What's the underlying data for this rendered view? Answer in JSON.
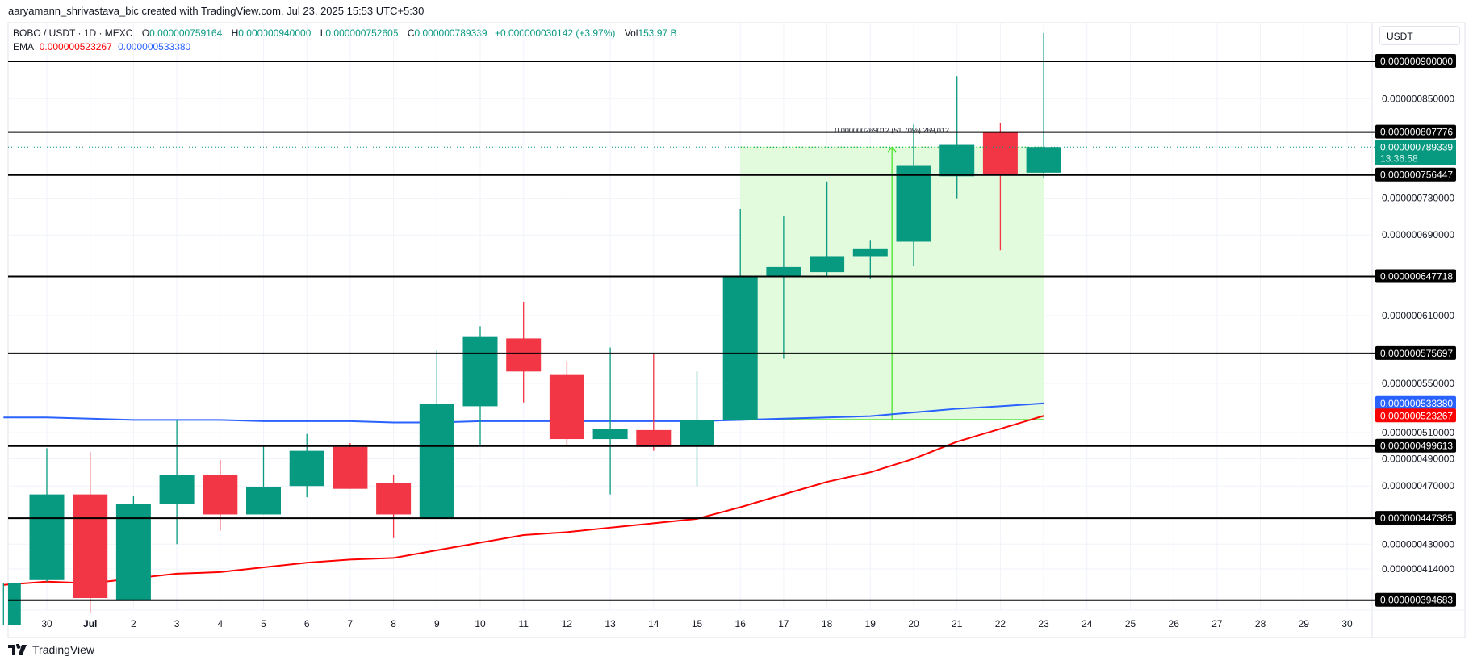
{
  "header": {
    "credit": "aaryamann_shrivastava_bic created with TradingView.com, Jul 23, 2025 15:53 UTC+5:30"
  },
  "legend": {
    "symbol": "BOBO / USDT · 1D · MEXC",
    "o_label": "O",
    "o": "0.000000759164",
    "h_label": "H",
    "h": "0.000000940000",
    "l_label": "L",
    "l": "0.000000752605",
    "c_label": "C",
    "c": "0.000000789339",
    "change": "+0.000000030142 (+3.97%)",
    "vol_label": "Vol",
    "vol": "153.97 B"
  },
  "ema_legend": {
    "label": "EMA",
    "value_red": "0.000000523267",
    "value_blue": "0.000000533380"
  },
  "colors": {
    "up": "#089981",
    "down": "#f23645",
    "ema_red": "#ff0000",
    "ema_blue": "#2962ff",
    "measure_fill": "#e2fbdc",
    "measure_line": "#3ee01f"
  },
  "price_axis": {
    "currency": "USDT",
    "ticks": [
      {
        "price": 8.5e-07,
        "label": "0.000000850000"
      },
      {
        "price": 7.3e-07,
        "label": "0.000000730000"
      },
      {
        "price": 6.9e-07,
        "label": "0.000000690000"
      },
      {
        "price": 6.1e-07,
        "label": "0.000000610000"
      },
      {
        "price": 5.5e-07,
        "label": "0.000000550000"
      },
      {
        "price": 5.1e-07,
        "label": "0.000000510000"
      },
      {
        "price": 4.9e-07,
        "label": "0.000000490000"
      },
      {
        "price": 4.7e-07,
        "label": "0.000000470000"
      },
      {
        "price": 4.3e-07,
        "label": "0.000000430000"
      },
      {
        "price": 4.14e-07,
        "label": "0.000000414000"
      }
    ],
    "levels": [
      {
        "price": 9e-07,
        "label": "0.000000900000"
      },
      {
        "price": 8.07776e-07,
        "label": "0.000000807776"
      },
      {
        "price": 7.56447e-07,
        "label": "0.000000756447"
      },
      {
        "price": 6.47718e-07,
        "label": "0.000000647718"
      },
      {
        "price": 5.75697e-07,
        "label": "0.000000575697"
      },
      {
        "price": 4.99613e-07,
        "label": "0.000000499613"
      },
      {
        "price": 4.47385e-07,
        "label": "0.000000447385"
      },
      {
        "price": 3.94683e-07,
        "label": "0.000000394683"
      }
    ],
    "current": {
      "price": 7.89339e-07,
      "label": "0.000000789339",
      "countdown": "13:36:58"
    },
    "ema_tags": [
      {
        "price": 5.3338e-07,
        "label": "0.000000533380",
        "color": "#2962ff"
      },
      {
        "price": 5.23267e-07,
        "label": "0.000000523267",
        "color": "#ff0000"
      }
    ]
  },
  "measure": {
    "label": "0.000000269012 (51.70%) 269,012",
    "from_date": "2025-07-16",
    "to_date": "2025-07-23",
    "low": 5.20327e-07,
    "high": 7.89339e-07
  },
  "time_axis": {
    "labels": [
      "30",
      "Jul",
      "2",
      "3",
      "4",
      "5",
      "6",
      "7",
      "8",
      "9",
      "10",
      "11",
      "12",
      "13",
      "14",
      "15",
      "16",
      "17",
      "18",
      "19",
      "20",
      "21",
      "22",
      "23",
      "24",
      "25",
      "26",
      "27",
      "28",
      "29",
      "30"
    ]
  },
  "chart_data": {
    "type": "candlestick",
    "scale": "log",
    "ylim": [
      3.8e-07,
      9.6e-07
    ],
    "grid": true,
    "candles": [
      {
        "date": "2025-06-29",
        "o": 3.8e-07,
        "h": 4.05e-07,
        "l": 3.8e-07,
        "c": 4.05e-07
      },
      {
        "date": "2025-06-30",
        "o": 4.07e-07,
        "h": 4.98e-07,
        "l": 4.06e-07,
        "c": 4.64e-07
      },
      {
        "date": "2025-07-01",
        "o": 4.64e-07,
        "h": 4.95e-07,
        "l": 3.87e-07,
        "c": 3.96e-07
      },
      {
        "date": "2025-07-02",
        "o": 3.95e-07,
        "h": 4.63e-07,
        "l": 3.95e-07,
        "c": 4.57e-07
      },
      {
        "date": "2025-07-03",
        "o": 4.57e-07,
        "h": 5.2e-07,
        "l": 4.3e-07,
        "c": 4.78e-07
      },
      {
        "date": "2025-07-04",
        "o": 4.78e-07,
        "h": 4.89e-07,
        "l": 4.39e-07,
        "c": 4.5e-07
      },
      {
        "date": "2025-07-05",
        "o": 4.5e-07,
        "h": 5e-07,
        "l": 4.5e-07,
        "c": 4.69e-07
      },
      {
        "date": "2025-07-06",
        "o": 4.7e-07,
        "h": 5.09e-07,
        "l": 4.62e-07,
        "c": 4.96e-07
      },
      {
        "date": "2025-07-07",
        "o": 4.99e-07,
        "h": 5.02e-07,
        "l": 4.68e-07,
        "c": 4.68e-07
      },
      {
        "date": "2025-07-08",
        "o": 4.72e-07,
        "h": 4.78e-07,
        "l": 4.34e-07,
        "c": 4.5e-07
      },
      {
        "date": "2025-07-09",
        "o": 4.47e-07,
        "h": 5.78e-07,
        "l": 4.47e-07,
        "c": 5.33e-07
      },
      {
        "date": "2025-07-10",
        "o": 5.31e-07,
        "h": 6e-07,
        "l": 5e-07,
        "c": 5.91e-07
      },
      {
        "date": "2025-07-11",
        "o": 5.89e-07,
        "h": 6.23e-07,
        "l": 5.34e-07,
        "c": 5.6e-07
      },
      {
        "date": "2025-07-12",
        "o": 5.57e-07,
        "h": 5.69e-07,
        "l": 5e-07,
        "c": 5.05e-07
      },
      {
        "date": "2025-07-13",
        "o": 5.05e-07,
        "h": 5.81e-07,
        "l": 4.64e-07,
        "c": 5.13e-07
      },
      {
        "date": "2025-07-14",
        "o": 5.12e-07,
        "h": 5.76e-07,
        "l": 4.96e-07,
        "c": 4.99e-07
      },
      {
        "date": "2025-07-15",
        "o": 5e-07,
        "h": 5.6e-07,
        "l": 4.7e-07,
        "c": 5.2e-07
      },
      {
        "date": "2025-07-16",
        "o": 5.2e-07,
        "h": 7.18e-07,
        "l": 5.2e-07,
        "c": 6.48e-07
      },
      {
        "date": "2025-07-17",
        "o": 6.47e-07,
        "h": 7.1e-07,
        "l": 5.71e-07,
        "c": 6.57e-07
      },
      {
        "date": "2025-07-18",
        "o": 6.52e-07,
        "h": 7.49e-07,
        "l": 6.47e-07,
        "c": 6.68e-07
      },
      {
        "date": "2025-07-19",
        "o": 6.68e-07,
        "h": 6.84e-07,
        "l": 6.45e-07,
        "c": 6.76e-07
      },
      {
        "date": "2025-07-20",
        "o": 6.83e-07,
        "h": 8.17e-07,
        "l": 6.58e-07,
        "c": 7.67e-07
      },
      {
        "date": "2025-07-21",
        "o": 7.55e-07,
        "h": 8.8e-07,
        "l": 7.3e-07,
        "c": 7.92e-07
      },
      {
        "date": "2025-07-22",
        "o": 8.08e-07,
        "h": 8.19e-07,
        "l": 6.74e-07,
        "c": 7.58e-07
      },
      {
        "date": "2025-07-23",
        "o": 7.59164e-07,
        "h": 9.4e-07,
        "l": 7.52605e-07,
        "c": 7.89339e-07
      }
    ],
    "series": [
      {
        "color": "#2962ff",
        "values": [
          5.22e-07,
          5.22e-07,
          5.21e-07,
          5.2e-07,
          5.2e-07,
          5.2e-07,
          5.19e-07,
          5.19e-07,
          5.19e-07,
          5.18e-07,
          5.18e-07,
          5.19e-07,
          5.19e-07,
          5.19e-07,
          5.19e-07,
          5.19e-07,
          5.19e-07,
          5.2e-07,
          5.21e-07,
          5.22e-07,
          5.23e-07,
          5.26e-07,
          5.29e-07,
          5.31e-07,
          5.3338e-07
        ]
      },
      {
        "color": "#ff0000",
        "values": [
          4.04e-07,
          4.06e-07,
          4.05e-07,
          4.08e-07,
          4.11e-07,
          4.12e-07,
          4.15e-07,
          4.18e-07,
          4.2e-07,
          4.21e-07,
          4.26e-07,
          4.31e-07,
          4.36e-07,
          4.38e-07,
          4.41e-07,
          4.44e-07,
          4.47e-07,
          4.55e-07,
          4.64e-07,
          4.73e-07,
          4.8e-07,
          4.9e-07,
          5.03e-07,
          5.13e-07,
          5.23267e-07
        ]
      }
    ]
  },
  "footer": {
    "brand": "TradingView"
  }
}
